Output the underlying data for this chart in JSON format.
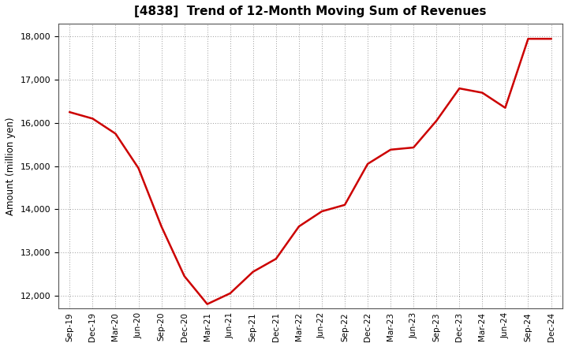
{
  "title": "[4838]  Trend of 12-Month Moving Sum of Revenues",
  "ylabel": "Amount (million yen)",
  "line_color": "#CC0000",
  "line_width": 1.8,
  "background_color": "#FFFFFF",
  "grid_color": "#999999",
  "ylim": [
    11700,
    18300
  ],
  "yticks": [
    12000,
    13000,
    14000,
    15000,
    16000,
    17000,
    18000
  ],
  "x_labels": [
    "Sep-19",
    "Dec-19",
    "Mar-20",
    "Jun-20",
    "Sep-20",
    "Dec-20",
    "Mar-21",
    "Jun-21",
    "Sep-21",
    "Dec-21",
    "Mar-22",
    "Jun-22",
    "Sep-22",
    "Dec-22",
    "Mar-23",
    "Jun-23",
    "Sep-23",
    "Dec-23",
    "Mar-24",
    "Jun-24",
    "Sep-24",
    "Dec-24"
  ],
  "values": [
    16250,
    16100,
    15750,
    14950,
    13600,
    12450,
    11800,
    12050,
    12550,
    12850,
    13600,
    13950,
    14100,
    15050,
    15380,
    15430,
    16050,
    16800,
    16700,
    16350,
    17950,
    17950
  ]
}
